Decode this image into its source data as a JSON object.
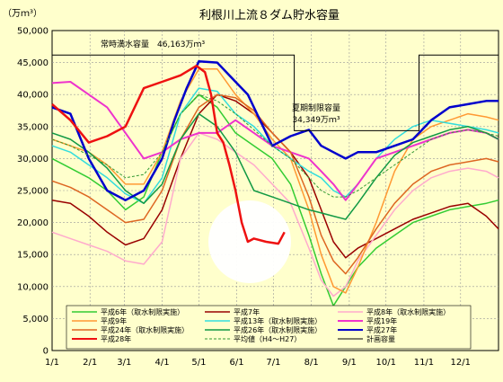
{
  "chart_data": {
    "type": "line",
    "title": "利根川上流８ダム貯水容量",
    "ylabel": "（万ｍ³）",
    "xlabel": "",
    "ylim": [
      0,
      50000
    ],
    "yticks": [
      "0",
      "5,000",
      "10,000",
      "15,000",
      "20,000",
      "25,000",
      "30,000",
      "35,000",
      "40,000",
      "45,000",
      "50,000"
    ],
    "xticks": [
      "1/1",
      "2/1",
      "3/1",
      "4/1",
      "5/1",
      "6/1",
      "7/1",
      "8/1",
      "9/1",
      "10/1",
      "11/1",
      "12/1"
    ],
    "grid": true,
    "legend_position": "bottom",
    "annotations": {
      "full_capacity": "常時満水容量　46,163万ｍ³",
      "flood_capacity_line1": "夏期制限容量",
      "flood_capacity_line2": "34,349万ｍ³"
    },
    "capacity_line": {
      "name": "計画容量",
      "x": [
        0,
        198,
        198,
        300,
        300,
        365
      ],
      "values": [
        46163,
        46163,
        34349,
        34349,
        46163,
        46163
      ]
    },
    "series": [
      {
        "name": "平成6年（取水制限実施）",
        "color": "#33cc33",
        "width": 1.5,
        "x": [
          0,
          15,
          30,
          45,
          60,
          75,
          90,
          105,
          120,
          135,
          150,
          165,
          180,
          195,
          210,
          220,
          230,
          240,
          250,
          265,
          280,
          295,
          310,
          325,
          340,
          355,
          365
        ],
        "values": [
          30000,
          28500,
          27000,
          25000,
          22000,
          24000,
          31000,
          37000,
          40000,
          38000,
          34000,
          32000,
          30000,
          26000,
          18000,
          12000,
          7000,
          10000,
          13000,
          16000,
          18000,
          20000,
          21000,
          22000,
          22500,
          23000,
          23500
        ]
      },
      {
        "name": "平成7年",
        "color": "#990000",
        "width": 1.5,
        "x": [
          0,
          15,
          30,
          45,
          60,
          75,
          90,
          105,
          120,
          135,
          150,
          165,
          180,
          195,
          210,
          220,
          230,
          240,
          250,
          265,
          280,
          295,
          310,
          325,
          340,
          355,
          365
        ],
        "values": [
          23500,
          23000,
          21000,
          18500,
          16500,
          17500,
          22000,
          30000,
          37000,
          40000,
          39000,
          37000,
          34000,
          31000,
          27000,
          22000,
          17000,
          14500,
          16000,
          17500,
          19000,
          20500,
          21500,
          22500,
          23000,
          21000,
          19000
        ]
      },
      {
        "name": "平成8年（取水制限実施）",
        "color": "#ffaacc",
        "width": 1.5,
        "x": [
          0,
          15,
          30,
          45,
          60,
          75,
          90,
          105,
          120,
          135,
          150,
          165,
          180,
          195,
          210,
          220,
          230,
          240,
          250,
          265,
          280,
          295,
          310,
          325,
          340,
          355,
          365
        ],
        "values": [
          18500,
          17500,
          16500,
          15500,
          14000,
          13500,
          17000,
          30000,
          34000,
          33000,
          31000,
          29000,
          26000,
          23000,
          16000,
          11000,
          8500,
          10000,
          14000,
          18000,
          22000,
          25000,
          27000,
          28000,
          28500,
          28000,
          27000
        ]
      },
      {
        "name": "平成9年",
        "color": "#ff9933",
        "width": 1.5,
        "x": [
          0,
          15,
          30,
          45,
          60,
          75,
          90,
          105,
          120,
          135,
          150,
          165,
          180,
          195,
          210,
          220,
          230,
          240,
          250,
          265,
          280,
          295,
          310,
          325,
          340,
          355,
          365
        ],
        "values": [
          33000,
          32000,
          31000,
          29000,
          26000,
          26000,
          31000,
          39000,
          44000,
          44000,
          40000,
          37000,
          33000,
          30000,
          22000,
          15000,
          10000,
          9000,
          13000,
          20000,
          28000,
          33000,
          35000,
          36000,
          37000,
          36500,
          36000
        ]
      },
      {
        "name": "平成13年（取水制限実施）",
        "color": "#33dddd",
        "width": 1.5,
        "x": [
          0,
          15,
          30,
          45,
          60,
          75,
          90,
          105,
          120,
          135,
          150,
          165,
          180,
          195,
          210,
          220,
          230,
          240,
          250,
          265,
          280,
          295,
          310,
          325,
          340,
          355,
          365
        ],
        "values": [
          32000,
          31000,
          29000,
          27000,
          24500,
          23000,
          27000,
          37000,
          41000,
          40500,
          37000,
          35000,
          32000,
          30000,
          28000,
          27000,
          25000,
          24000,
          26000,
          30000,
          33000,
          35000,
          36000,
          35500,
          35000,
          34500,
          34000
        ]
      },
      {
        "name": "平成19年",
        "color": "#ee33cc",
        "width": 2,
        "x": [
          0,
          15,
          30,
          45,
          60,
          75,
          90,
          105,
          120,
          135,
          150,
          165,
          180,
          195,
          210,
          220,
          230,
          240,
          250,
          265,
          280,
          295,
          310,
          325,
          340,
          355,
          365
        ],
        "values": [
          41800,
          42000,
          40000,
          38000,
          34000,
          30000,
          31000,
          33000,
          34000,
          34000,
          36000,
          34000,
          32000,
          31000,
          30000,
          28000,
          26000,
          23500,
          26000,
          30000,
          31000,
          32000,
          33000,
          34000,
          34500,
          34000,
          33000
        ]
      },
      {
        "name": "平成24年（取水制限実施）",
        "color": "#dd6622",
        "width": 1.5,
        "x": [
          0,
          15,
          30,
          45,
          60,
          75,
          90,
          105,
          120,
          135,
          150,
          165,
          180,
          195,
          210,
          220,
          230,
          240,
          250,
          265,
          280,
          295,
          310,
          325,
          340,
          355,
          365
        ],
        "values": [
          26500,
          25500,
          24000,
          22000,
          20000,
          20500,
          25000,
          33000,
          38000,
          40000,
          39500,
          37500,
          34000,
          31000,
          24000,
          18000,
          14000,
          12000,
          14500,
          19000,
          23000,
          26000,
          28000,
          29000,
          29500,
          30000,
          29500
        ]
      },
      {
        "name": "平成26年（取水制限実施）",
        "color": "#119944",
        "width": 1.5,
        "x": [
          0,
          15,
          30,
          45,
          60,
          75,
          90,
          105,
          120,
          135,
          150,
          165,
          180,
          195,
          210,
          220,
          230,
          240,
          250,
          265,
          280,
          295,
          310,
          325,
          340,
          355,
          365
        ],
        "values": [
          34000,
          33000,
          31000,
          28500,
          25000,
          23000,
          26000,
          33000,
          37000,
          35000,
          31000,
          25000,
          24000,
          23000,
          22000,
          21500,
          21000,
          20500,
          23000,
          27000,
          30500,
          32500,
          33500,
          34500,
          35000,
          34000,
          33000
        ]
      },
      {
        "name": "平成27年",
        "color": "#0000cc",
        "width": 2.5,
        "x": [
          0,
          15,
          30,
          45,
          60,
          75,
          90,
          100,
          110,
          120,
          135,
          150,
          160,
          170,
          180,
          195,
          210,
          220,
          230,
          240,
          250,
          265,
          280,
          295,
          310,
          325,
          340,
          355,
          365
        ],
        "values": [
          38000,
          37000,
          30000,
          25000,
          23500,
          25000,
          30000,
          36000,
          41000,
          45200,
          45000,
          42000,
          40000,
          36000,
          32000,
          33500,
          34500,
          32000,
          31000,
          30000,
          31000,
          31000,
          32000,
          33000,
          36000,
          38000,
          38500,
          39000,
          39000
        ]
      },
      {
        "name": "平成28年",
        "color": "#ee1111",
        "width": 2.5,
        "x": [
          0,
          15,
          30,
          45,
          60,
          75,
          90,
          105,
          118,
          125,
          130,
          135,
          140,
          145,
          150,
          155,
          160,
          165,
          175,
          185,
          190
        ],
        "values": [
          38500,
          36000,
          32500,
          33500,
          35000,
          41000,
          42000,
          43000,
          44500,
          43500,
          40000,
          34000,
          32500,
          29000,
          25000,
          20000,
          17000,
          17500,
          17000,
          16700,
          18500
        ]
      },
      {
        "name": "平均値（H4〜H27）",
        "color": "#339933",
        "width": 1,
        "dashed": true,
        "x": [
          0,
          15,
          30,
          45,
          60,
          75,
          90,
          105,
          120,
          135,
          150,
          165,
          180,
          195,
          210,
          220,
          230,
          240,
          250,
          265,
          280,
          295,
          310,
          325,
          340,
          355,
          365
        ],
        "values": [
          33000,
          32000,
          30500,
          29000,
          27000,
          27500,
          31000,
          37000,
          40000,
          39000,
          37000,
          34500,
          32000,
          30000,
          27000,
          25000,
          24000,
          24000,
          25000,
          27000,
          29000,
          31000,
          33000,
          34000,
          34500,
          34000,
          33500
        ]
      }
    ]
  }
}
